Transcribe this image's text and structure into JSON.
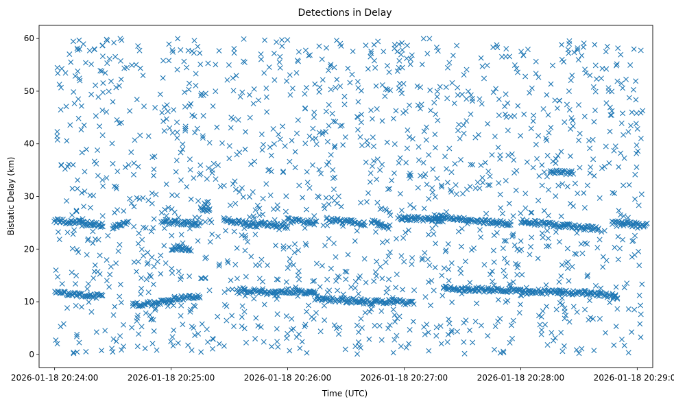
{
  "chart_data": {
    "type": "scatter",
    "title": "Detections in Delay",
    "xlabel": "Time (UTC)",
    "ylabel": "Bistatic Delay (km)",
    "x_unit": "UTC datetime",
    "xlim": [
      "2026-01-18 20:23:52",
      "2026-01-18 20:29:08"
    ],
    "ylim": [
      -2.5,
      62.5
    ],
    "x_ticks": [
      {
        "value": "2026-01-18 20:24:00",
        "label": "2026-01-18 20:24:00"
      },
      {
        "value": "2026-01-18 20:25:00",
        "label": "2026-01-18 20:25:00"
      },
      {
        "value": "2026-01-18 20:26:00",
        "label": "2026-01-18 20:26:00"
      },
      {
        "value": "2026-01-18 20:27:00",
        "label": "2026-01-18 20:27:00"
      },
      {
        "value": "2026-01-18 20:28:00",
        "label": "2026-01-18 20:28:00"
      },
      {
        "value": "2026-01-18 20:29:00",
        "label": "2026-01-18 20:29:00"
      }
    ],
    "y_ticks": [
      0,
      10,
      20,
      30,
      40,
      50,
      60
    ],
    "grid": false,
    "legend": "none",
    "marker": "x",
    "color": "#1f77b4",
    "time_range": [
      "2026-01-18 20:24:00",
      "2026-01-18 20:29:03"
    ],
    "delay_range_km": [
      0,
      60
    ],
    "tracks": [
      {
        "start": "2026-01-18 20:24:00",
        "end": "2026-01-18 20:24:25",
        "delay_start": 25.5,
        "delay_end": 24.6
      },
      {
        "start": "2026-01-18 20:24:30",
        "end": "2026-01-18 20:24:38",
        "delay_start": 24.2,
        "delay_end": 25.0
      },
      {
        "start": "2026-01-18 20:24:55",
        "end": "2026-01-18 20:25:15",
        "delay_start": 25.2,
        "delay_end": 24.8
      },
      {
        "start": "2026-01-18 20:25:15",
        "end": "2026-01-18 20:25:20",
        "delay_start": 27.8,
        "delay_end": 27.5
      },
      {
        "start": "2026-01-18 20:25:27",
        "end": "2026-01-18 20:25:45",
        "delay_start": 25.5,
        "delay_end": 24.5
      },
      {
        "start": "2026-01-18 20:25:45",
        "end": "2026-01-18 20:26:00",
        "delay_start": 25.0,
        "delay_end": 24.2
      },
      {
        "start": "2026-01-18 20:26:00",
        "end": "2026-01-18 20:26:15",
        "delay_start": 25.5,
        "delay_end": 25.0
      },
      {
        "start": "2026-01-18 20:26:20",
        "end": "2026-01-18 20:26:40",
        "delay_start": 25.6,
        "delay_end": 24.8
      },
      {
        "start": "2026-01-18 20:26:43",
        "end": "2026-01-18 20:26:52",
        "delay_start": 25.2,
        "delay_end": 24.0
      },
      {
        "start": "2026-01-18 20:26:57",
        "end": "2026-01-18 20:27:20",
        "delay_start": 26.0,
        "delay_end": 25.5
      },
      {
        "start": "2026-01-18 20:27:15",
        "end": "2026-01-18 20:27:55",
        "delay_start": 26.2,
        "delay_end": 24.8
      },
      {
        "start": "2026-01-18 20:28:00",
        "end": "2026-01-18 20:28:40",
        "delay_start": 25.3,
        "delay_end": 23.8
      },
      {
        "start": "2026-01-18 20:28:47",
        "end": "2026-01-18 20:29:05",
        "delay_start": 25.0,
        "delay_end": 24.5
      },
      {
        "start": "2026-01-18 20:24:00",
        "end": "2026-01-18 20:24:25",
        "delay_start": 11.8,
        "delay_end": 11.0
      },
      {
        "start": "2026-01-18 20:24:40",
        "end": "2026-01-18 20:25:00",
        "delay_start": 9.3,
        "delay_end": 10.0
      },
      {
        "start": "2026-01-18 20:25:00",
        "end": "2026-01-18 20:25:15",
        "delay_start": 10.5,
        "delay_end": 11.0
      },
      {
        "start": "2026-01-18 20:25:35",
        "end": "2026-01-18 20:25:55",
        "delay_start": 12.3,
        "delay_end": 11.5
      },
      {
        "start": "2026-01-18 20:25:55",
        "end": "2026-01-18 20:26:15",
        "delay_start": 12.2,
        "delay_end": 11.6
      },
      {
        "start": "2026-01-18 20:26:15",
        "end": "2026-01-18 20:26:45",
        "delay_start": 10.5,
        "delay_end": 10.0
      },
      {
        "start": "2026-01-18 20:26:45",
        "end": "2026-01-18 20:27:05",
        "delay_start": 10.2,
        "delay_end": 9.8
      },
      {
        "start": "2026-01-18 20:27:20",
        "end": "2026-01-18 20:28:00",
        "delay_start": 12.6,
        "delay_end": 12.0
      },
      {
        "start": "2026-01-18 20:28:00",
        "end": "2026-01-18 20:28:40",
        "delay_start": 12.0,
        "delay_end": 11.6
      },
      {
        "start": "2026-01-18 20:28:40",
        "end": "2026-01-18 20:28:50",
        "delay_start": 11.5,
        "delay_end": 11.0
      },
      {
        "start": "2026-01-18 20:28:15",
        "end": "2026-01-18 20:28:27",
        "delay_start": 34.6,
        "delay_end": 34.6
      },
      {
        "start": "2026-01-18 20:25:00",
        "end": "2026-01-18 20:25:10",
        "delay_start": 20.2,
        "delay_end": 20.0
      }
    ],
    "clutter_points_per_minute": 300
  }
}
